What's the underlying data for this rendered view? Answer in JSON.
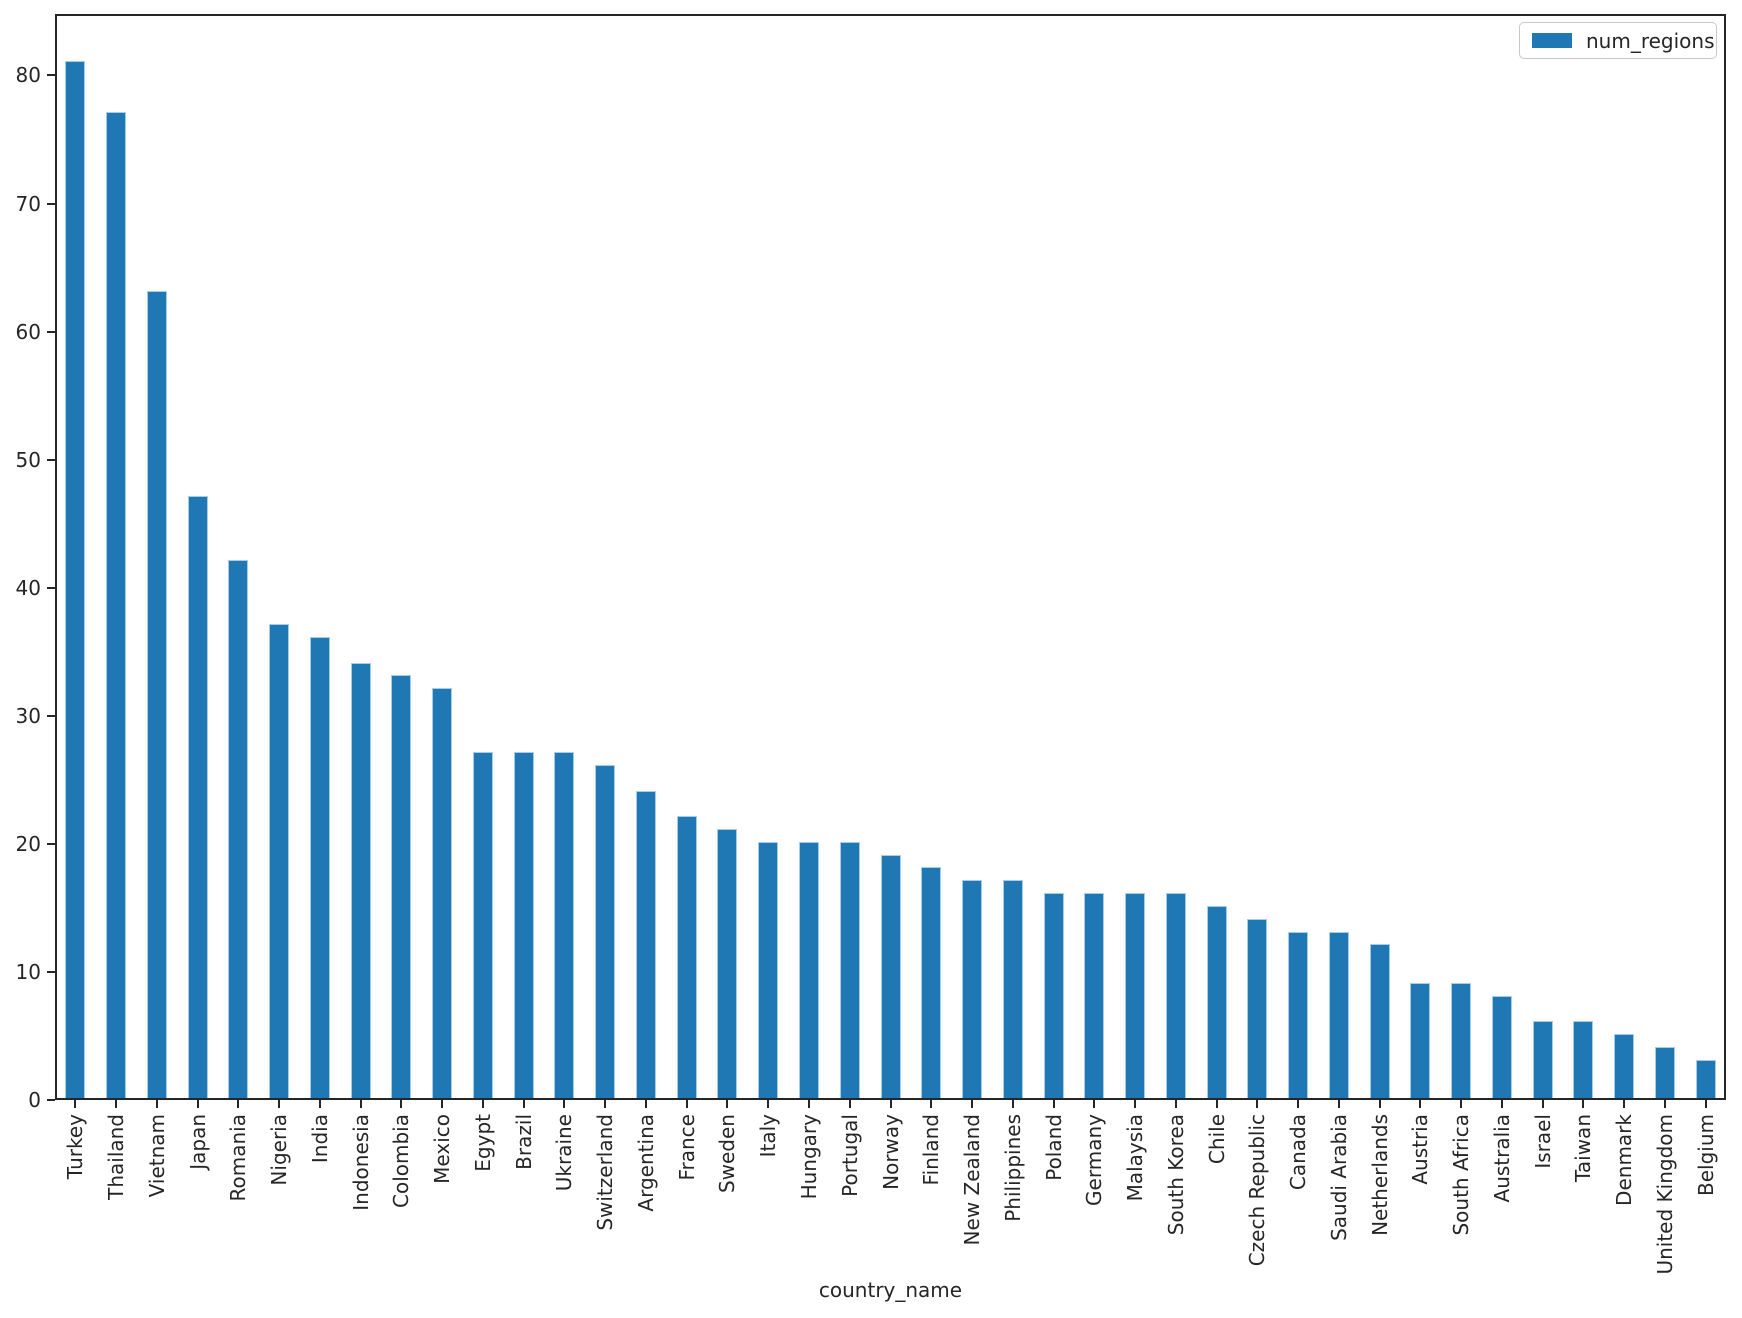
{
  "figure": {
    "background": "#ffffff"
  },
  "chart_data": {
    "type": "bar",
    "title": "",
    "xlabel": "country_name",
    "ylabel": "",
    "legend_label": "num_regions",
    "legend_position": "upper right",
    "bar_color": "#1f77b4",
    "axis_color": "#262626",
    "grid": false,
    "ylim": [
      0,
      84.8
    ],
    "yticks": [
      0,
      10,
      20,
      30,
      40,
      50,
      60,
      70,
      80
    ],
    "categories": [
      "Turkey",
      "Thailand",
      "Vietnam",
      "Japan",
      "Romania",
      "Nigeria",
      "India",
      "Indonesia",
      "Colombia",
      "Mexico",
      "Egypt",
      "Brazil",
      "Ukraine",
      "Switzerland",
      "Argentina",
      "France",
      "Sweden",
      "Italy",
      "Hungary",
      "Portugal",
      "Norway",
      "Finland",
      "New Zealand",
      "Philippines",
      "Poland",
      "Germany",
      "Malaysia",
      "South Korea",
      "Chile",
      "Czech Republic",
      "Canada",
      "Saudi Arabia",
      "Netherlands",
      "Austria",
      "South Africa",
      "Australia",
      "Israel",
      "Taiwan",
      "Denmark",
      "United Kingdom",
      "Belgium"
    ],
    "values": [
      81,
      77,
      63,
      47,
      42,
      37,
      36,
      34,
      33,
      32,
      27,
      27,
      27,
      26,
      24,
      22,
      21,
      20,
      20,
      20,
      19,
      18,
      17,
      17,
      16,
      16,
      16,
      16,
      15,
      14,
      13,
      13,
      12,
      9,
      9,
      8,
      6,
      6,
      5,
      4,
      3
    ]
  }
}
